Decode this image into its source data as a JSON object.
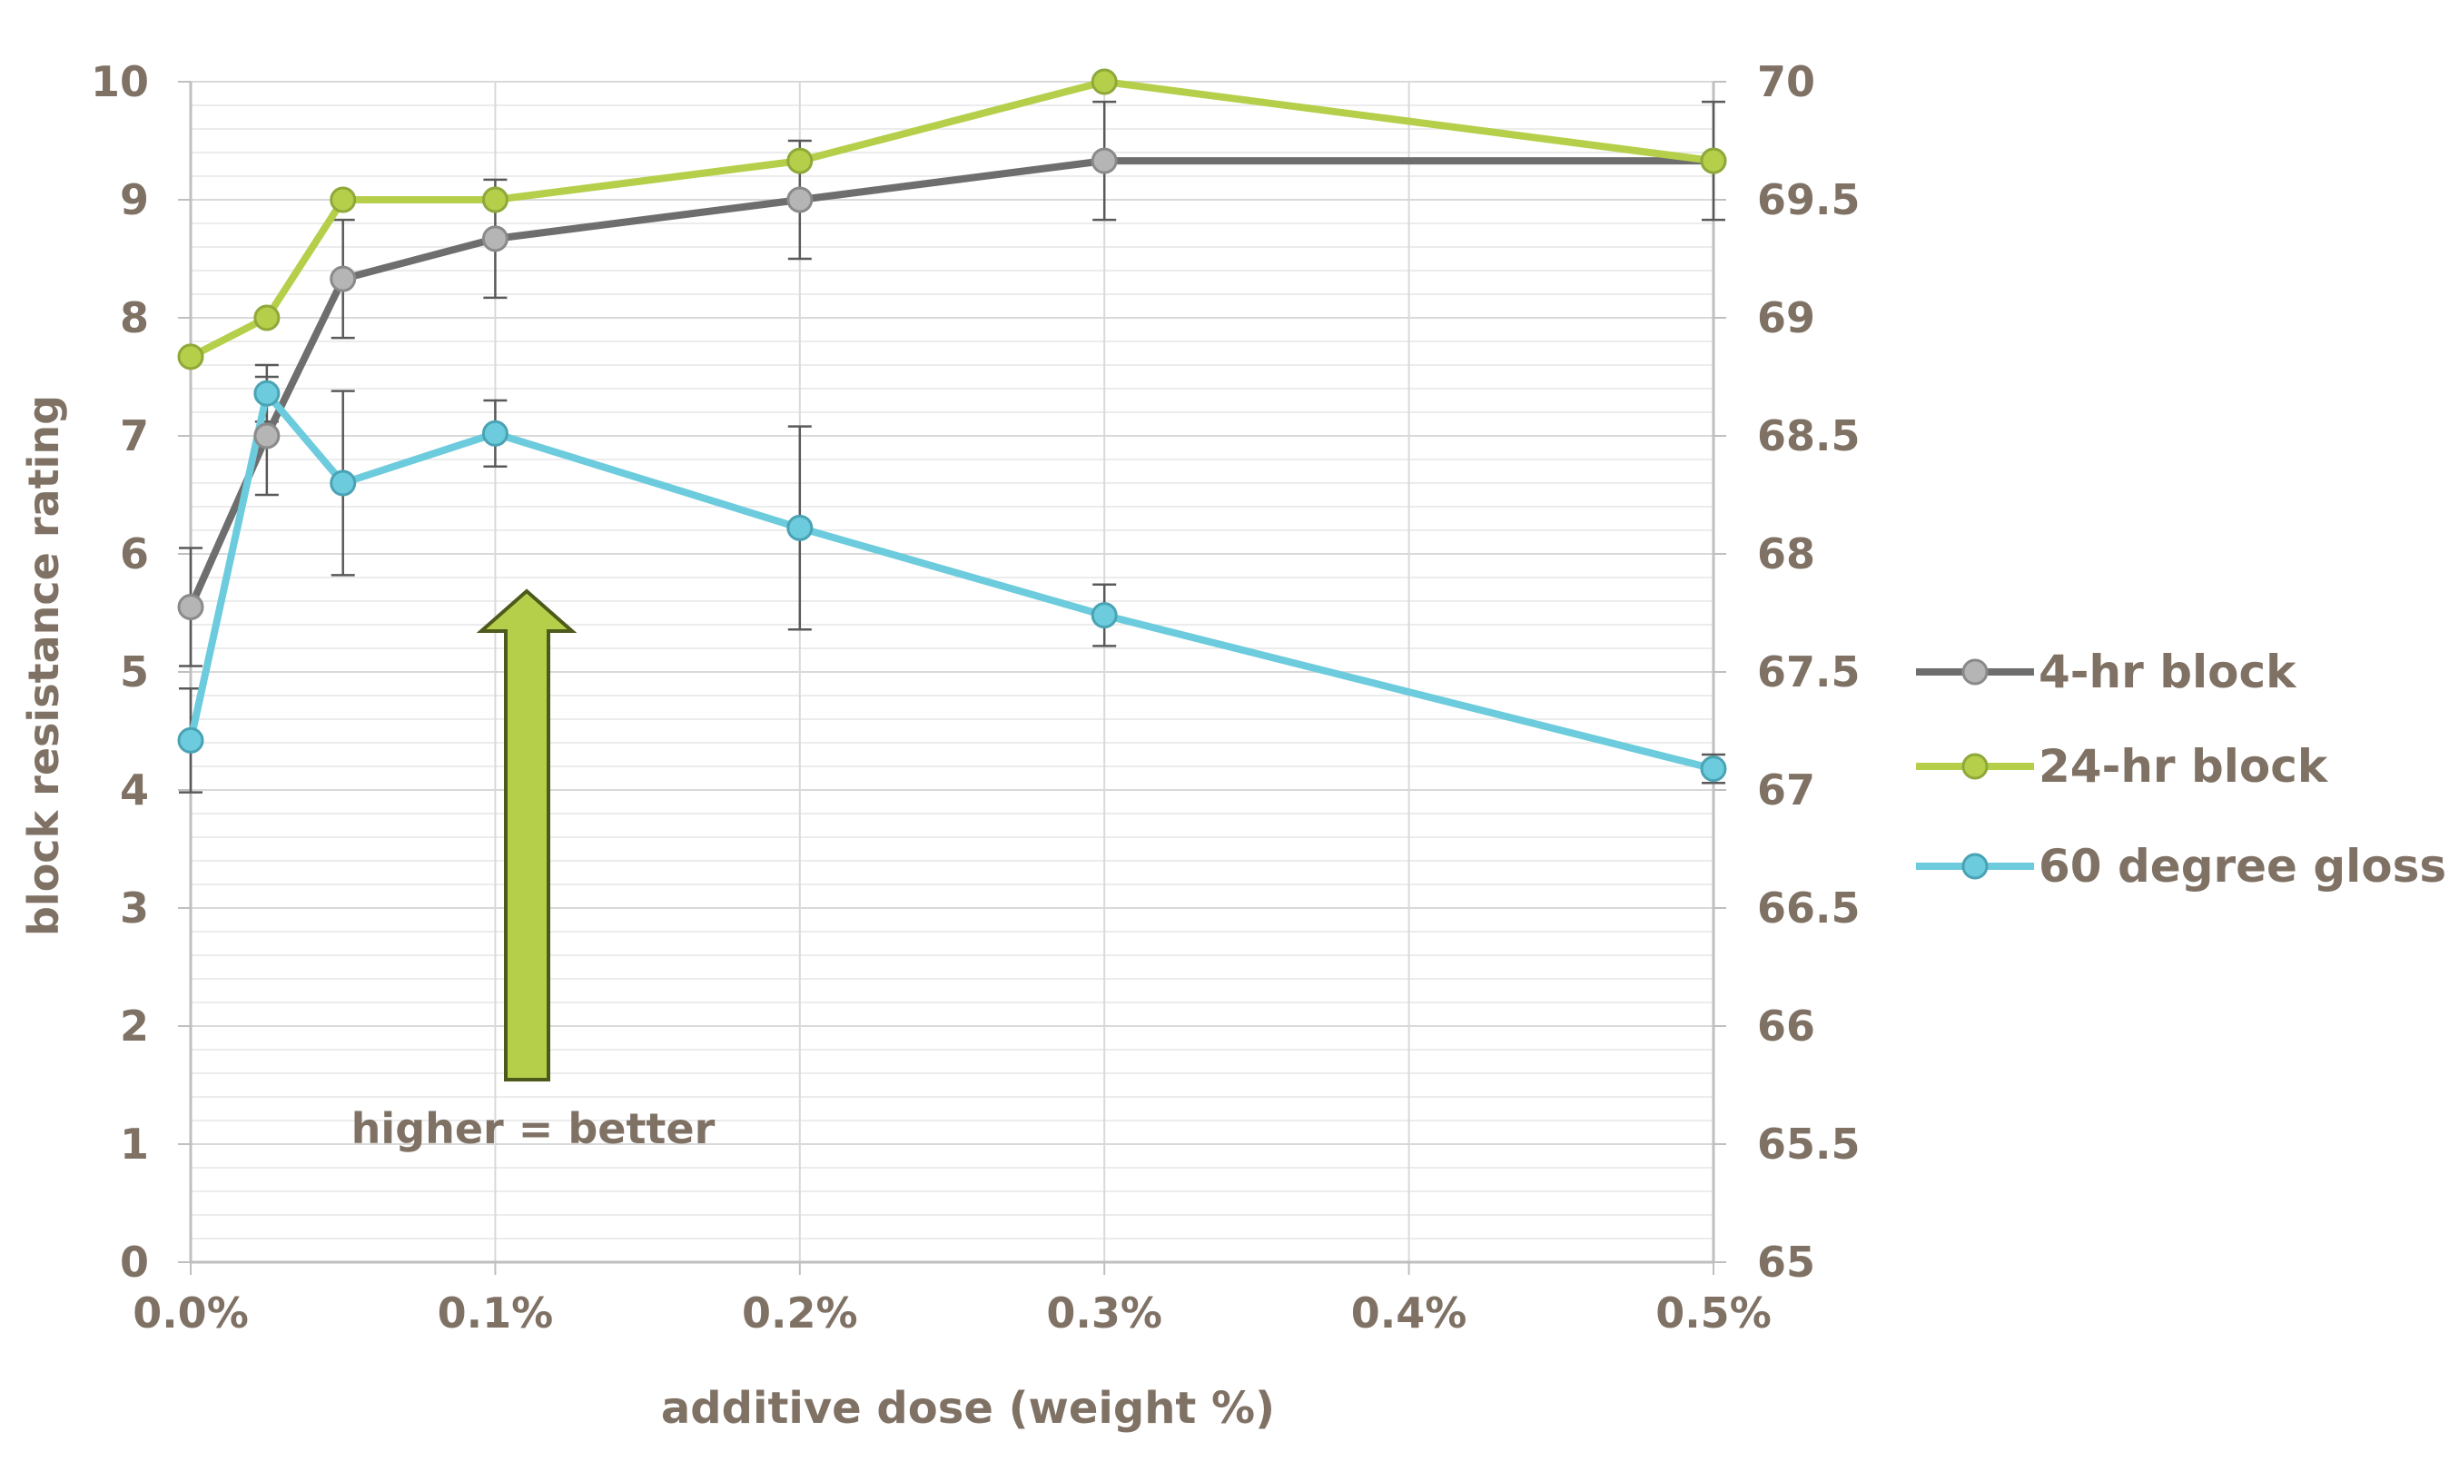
{
  "chart_data": {
    "type": "line",
    "title": "",
    "xlabel": "additive dose (weight %)",
    "ylabel": "block resistance rating",
    "y2label": "",
    "x": [
      0.0,
      0.025,
      0.05,
      0.1,
      0.2,
      0.3,
      0.5
    ],
    "xlim": [
      0.0,
      0.5
    ],
    "x_ticks": [
      {
        "value": 0.0,
        "label": "0.0%"
      },
      {
        "value": 0.1,
        "label": "0.1%"
      },
      {
        "value": 0.2,
        "label": "0.2%"
      },
      {
        "value": 0.3,
        "label": "0.3%"
      },
      {
        "value": 0.4,
        "label": "0.4%"
      },
      {
        "value": 0.5,
        "label": "0.5%"
      }
    ],
    "ylim": [
      0,
      10
    ],
    "y_ticks": [
      "0",
      "1",
      "2",
      "3",
      "4",
      "5",
      "6",
      "7",
      "8",
      "9",
      "10"
    ],
    "y2lim": [
      65,
      70
    ],
    "y2_ticks": [
      "65",
      "65.5",
      "66",
      "66.5",
      "67",
      "67.5",
      "68",
      "68.5",
      "69",
      "69.5",
      "70"
    ],
    "grid": true,
    "legend_position": "right",
    "series": [
      {
        "name": "4-hr block",
        "axis": "left",
        "color": "#6e6e6e",
        "marker_fill": "#b5b5b5",
        "marker_stroke": "#8a8a8a",
        "values": [
          5.55,
          7.0,
          8.33,
          8.67,
          9.0,
          9.33,
          9.33
        ],
        "errors": [
          0.5,
          0.5,
          0.5,
          0.5,
          0.5,
          0.5,
          0.5
        ]
      },
      {
        "name": "24-hr block",
        "axis": "left",
        "color": "#b5cf4a",
        "marker_fill": "#b5cf4a",
        "marker_stroke": "#8fa83a",
        "values": [
          7.67,
          8.0,
          9.0,
          9.0,
          9.33,
          10.0,
          9.33
        ],
        "errors": null
      },
      {
        "name": "60 degree gloss",
        "axis": "right",
        "color": "#6ccbdc",
        "marker_fill": "#6ccbdc",
        "marker_stroke": "#4aa3b4",
        "values": [
          67.21,
          68.68,
          68.3,
          68.51,
          68.11,
          67.74,
          67.09
        ],
        "errors": [
          0.22,
          0.12,
          0.39,
          0.14,
          0.43,
          0.13,
          0.06
        ]
      }
    ],
    "annotation": {
      "text": "higher = better",
      "arrow_color": "#b5cf4a",
      "arrow_outline": "#4d5a1c"
    }
  }
}
